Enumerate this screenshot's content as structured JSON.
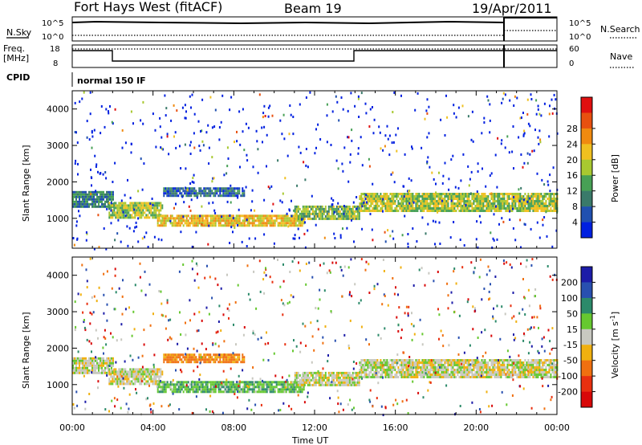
{
  "header": {
    "radar": "Fort Hays West (fitACF)",
    "beam": "Beam 19",
    "date": "19/Apr/2011"
  },
  "strips": {
    "nsky_label": "N.Sky",
    "nsky_ticks": [
      "10^5",
      "10^0"
    ],
    "nsearch_label": "N.Search",
    "nsearch_ticks": [
      "10^5",
      "10^0"
    ],
    "freq_label_1": "Freq.",
    "freq_label_2": "[MHz]",
    "freq_ticks": [
      "18",
      "8"
    ],
    "nave_label": "Nave",
    "nave_ticks": [
      "60",
      "0"
    ],
    "cpid_label": "CPID",
    "cpid_value": "normal 150 IF"
  },
  "axes": {
    "x_ticks": [
      "00:00",
      "04:00",
      "08:00",
      "12:00",
      "16:00",
      "20:00",
      "00:00"
    ],
    "x_label": "Time UT",
    "y_ticks": [
      "1000",
      "2000",
      "3000",
      "4000"
    ],
    "y_label": "Slant Range [km]"
  },
  "colorbars": {
    "power": {
      "label": "Power [dB]",
      "ticks": [
        "4",
        "8",
        "12",
        "16",
        "20",
        "24",
        "28"
      ],
      "colors": [
        "#0020e0",
        "#2050b0",
        "#3a7a6a",
        "#47a055",
        "#a8c830",
        "#f0c020",
        "#f08a10",
        "#e85010",
        "#e01010"
      ]
    },
    "velocity": {
      "label": "Velocity [m s",
      "label_sup": "-1",
      "label_end": "]",
      "ticks": [
        "200",
        "100",
        "50",
        "15",
        "-15",
        "-50",
        "-100",
        "-200"
      ],
      "colors": [
        "#1c1ca8",
        "#2850b0",
        "#2c8a6a",
        "#66c830",
        "#c8c8c0",
        "#f0b010",
        "#f07010",
        "#e83010",
        "#d80808"
      ]
    }
  },
  "chart_data": [
    {
      "type": "heatmap",
      "panel": "power",
      "x_range_hours": [
        0,
        24
      ],
      "y_range_km": [
        180,
        4500
      ],
      "ylabel": "Slant Range [km]",
      "xlabel": "Time UT",
      "bands": [
        {
          "t0": 0.0,
          "t1": 2.0,
          "r0": 1300,
          "r1": 1750,
          "level_db": 10
        },
        {
          "t0": 1.8,
          "t1": 4.5,
          "r0": 1000,
          "r1": 1450,
          "level_db": 18
        },
        {
          "t0": 4.5,
          "t1": 8.5,
          "r0": 1600,
          "r1": 1850,
          "level_db": 8
        },
        {
          "t0": 4.2,
          "t1": 11.5,
          "r0": 780,
          "r1": 1100,
          "level_db": 22
        },
        {
          "t0": 11.0,
          "t1": 14.2,
          "r0": 1000,
          "r1": 1350,
          "level_db": 16
        },
        {
          "t0": 14.2,
          "t1": 24.0,
          "r0": 1200,
          "r1": 1700,
          "level_db": 18
        }
      ]
    },
    {
      "type": "heatmap",
      "panel": "velocity",
      "x_range_hours": [
        0,
        24
      ],
      "y_range_km": [
        180,
        4500
      ],
      "ylabel": "Slant Range [km]",
      "xlabel": "Time UT",
      "bands": [
        {
          "t0": 0.0,
          "t1": 2.0,
          "r0": 1300,
          "r1": 1750,
          "level_ms": 0
        },
        {
          "t0": 1.8,
          "t1": 4.5,
          "r0": 1000,
          "r1": 1450,
          "level_ms": 0
        },
        {
          "t0": 4.5,
          "t1": 8.5,
          "r0": 1600,
          "r1": 1850,
          "level_ms": -60
        },
        {
          "t0": 4.2,
          "t1": 11.5,
          "r0": 780,
          "r1": 1100,
          "level_ms": 40
        },
        {
          "t0": 11.0,
          "t1": 14.2,
          "r0": 1000,
          "r1": 1350,
          "level_ms": 0
        },
        {
          "t0": 14.2,
          "t1": 24.0,
          "r0": 1200,
          "r1": 1700,
          "level_ms": 0
        }
      ]
    }
  ]
}
